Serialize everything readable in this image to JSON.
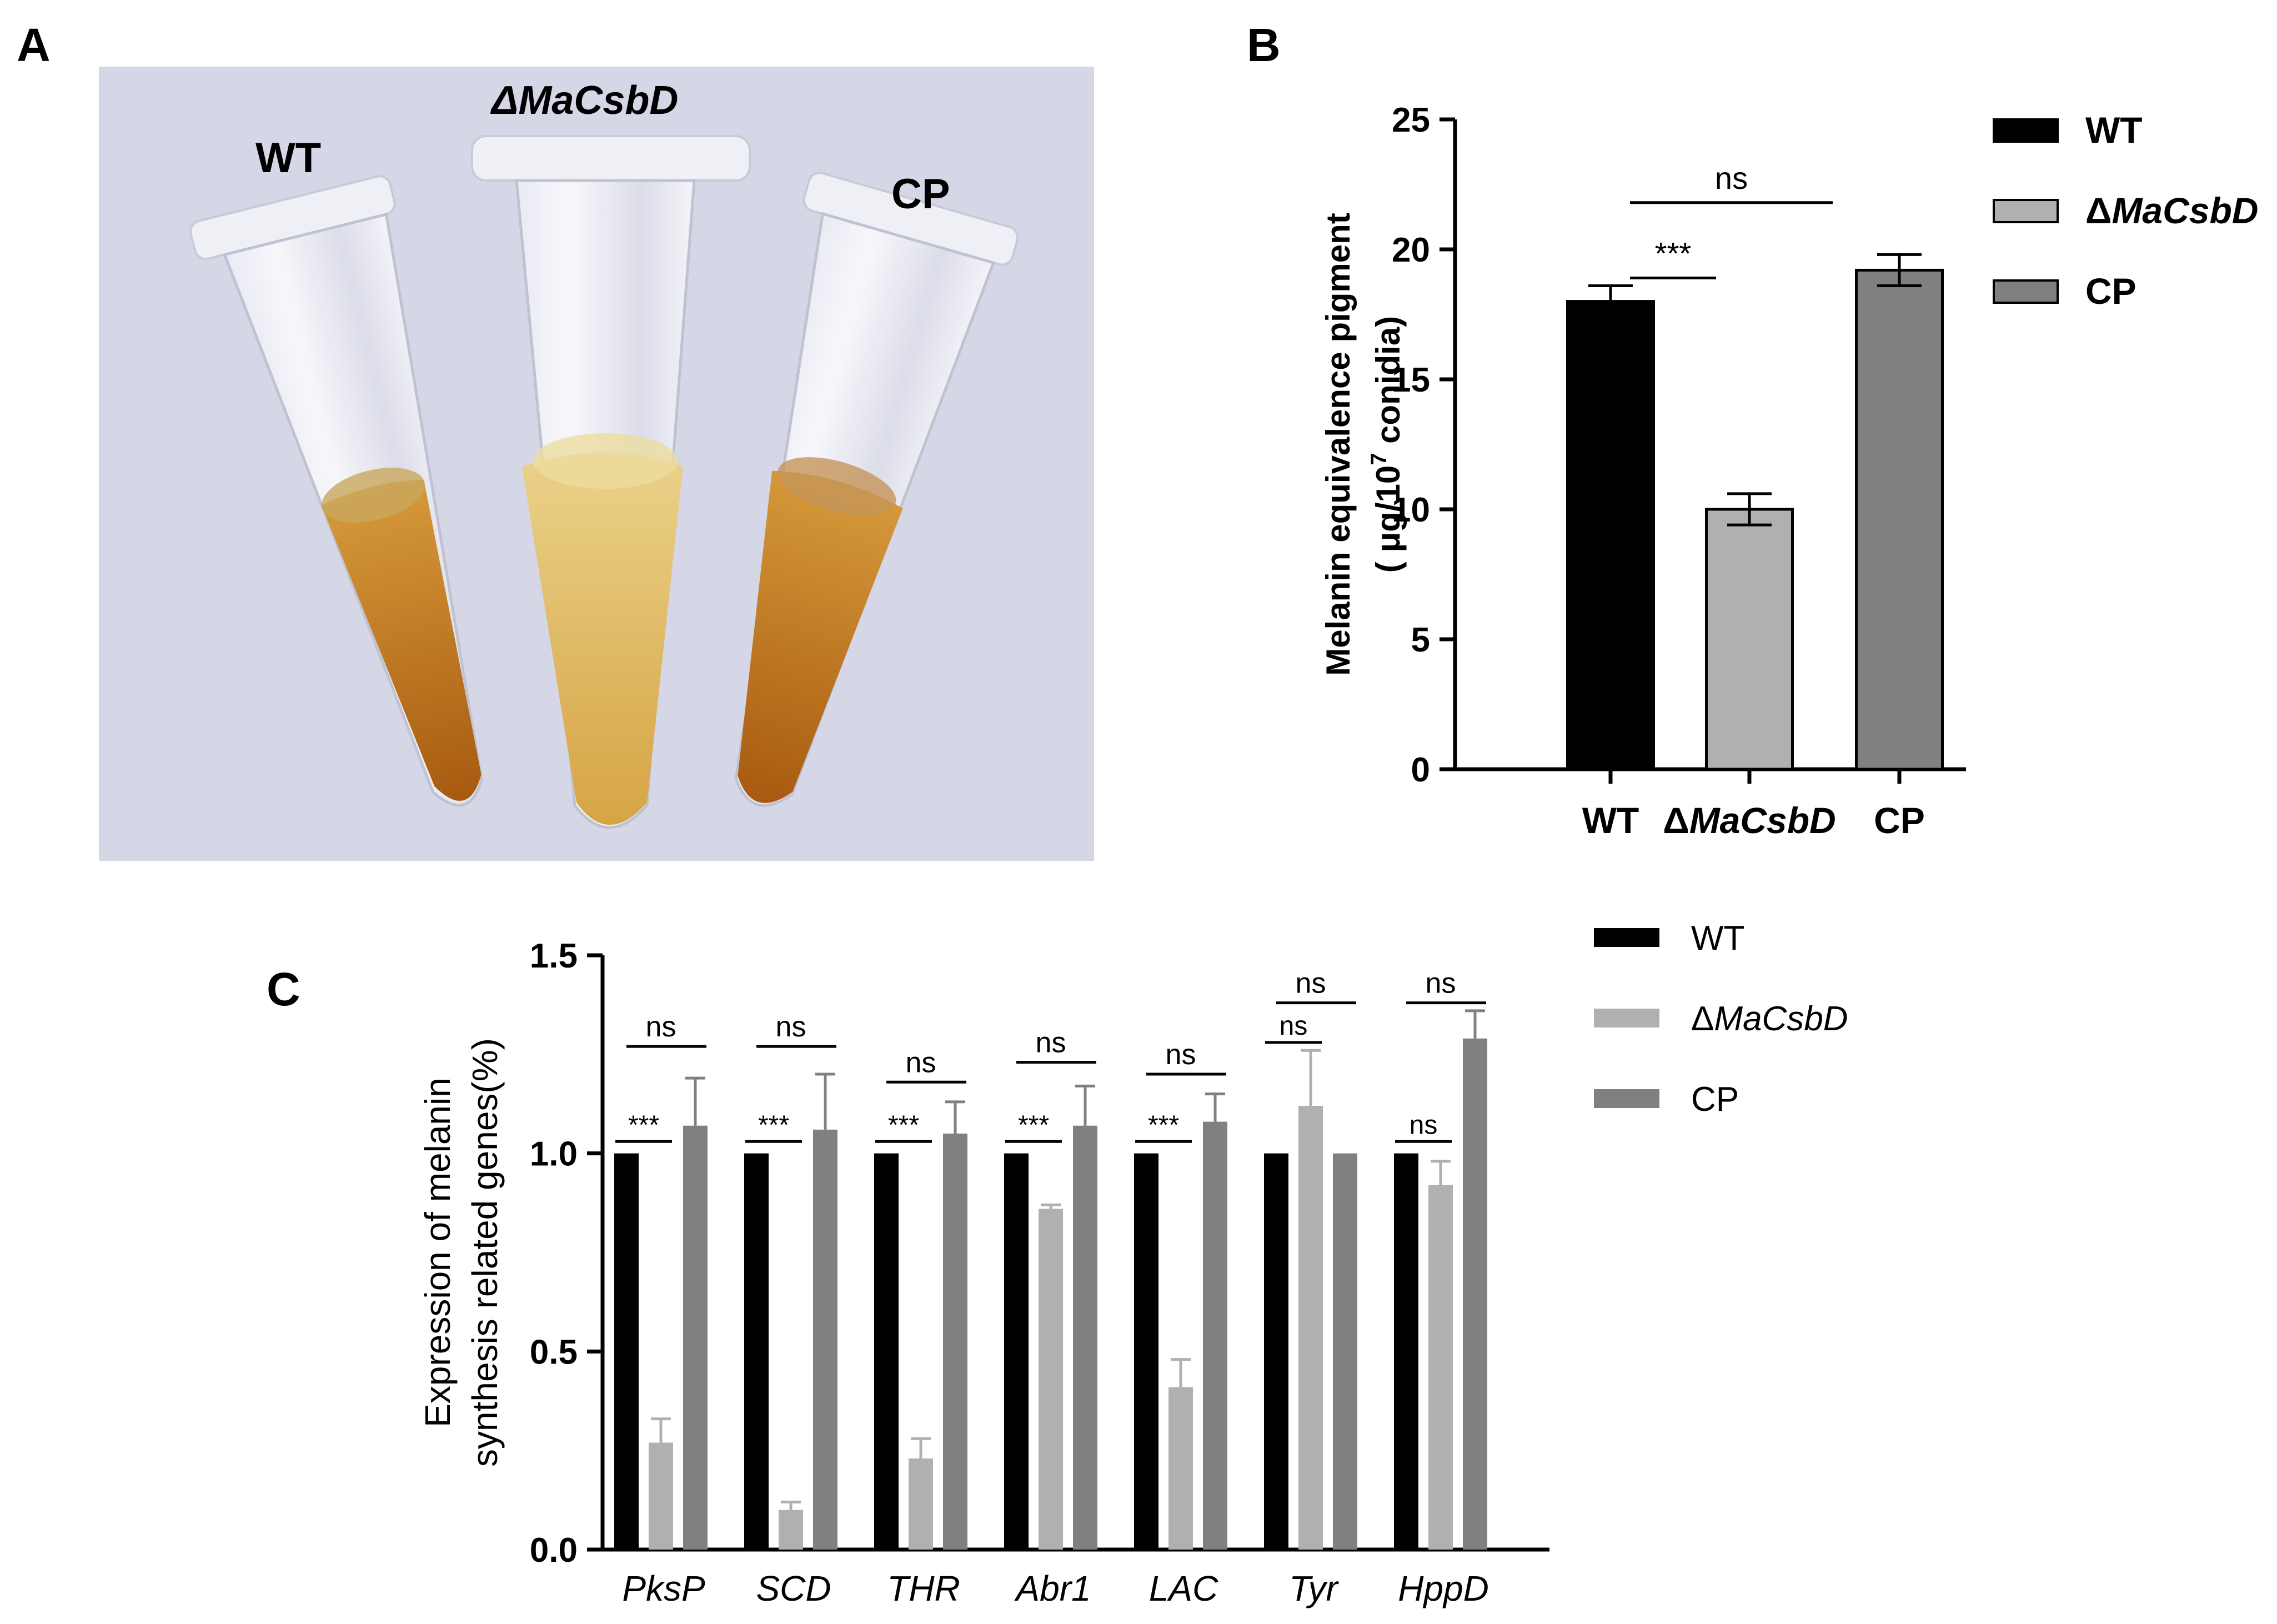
{
  "panels": {
    "A": {
      "letter": "A",
      "labels": {
        "wt": "WT",
        "delta": "ΔMaCsbD",
        "cp": "CP"
      }
    },
    "B": {
      "letter": "B"
    },
    "C": {
      "letter": "C"
    }
  },
  "colors": {
    "wt": "#000000",
    "delta": "#b0b0b0",
    "cp": "#808080",
    "background_photo": "#d6d7e6",
    "liquid_dark": "#b5620f",
    "liquid_light": "#d9a23a"
  },
  "chart_data": [
    {
      "panel": "B",
      "type": "bar",
      "title": "",
      "ylabel_line1": "Melanin equivalence pigment",
      "ylabel_line2": "( μg/10^7 conidia)",
      "ylim": [
        0,
        25
      ],
      "yticks": [
        0,
        5,
        10,
        15,
        20,
        25
      ],
      "grid": false,
      "legend_placement": "right",
      "categories": [
        "WT",
        "ΔMaCsbD",
        "CP"
      ],
      "values": [
        18.0,
        10.0,
        19.2
      ],
      "errors": [
        0.6,
        0.6,
        0.6
      ],
      "legend": [
        "WT",
        "ΔMaCsbD",
        "CP"
      ],
      "significance": [
        {
          "from": 0,
          "to": 1,
          "label": "***"
        },
        {
          "from": 1,
          "to": 2,
          "label": "ns"
        }
      ]
    },
    {
      "panel": "C",
      "type": "bar",
      "title": "",
      "ylabel_line1": "Expression of melanin",
      "ylabel_line2": "synthesis related genes(%)",
      "ylim": [
        0,
        1.5
      ],
      "yticks": [
        "0.0",
        "0.5",
        "1.0",
        "1.5"
      ],
      "grid": false,
      "legend_placement": "top-right",
      "categories": [
        "PksP",
        "SCD",
        "THR",
        "Abr1",
        "LAC",
        "Tyr",
        "HppD"
      ],
      "series": [
        {
          "name": "WT",
          "values": [
            1.0,
            1.0,
            1.0,
            1.0,
            1.0,
            1.0,
            1.0
          ],
          "errors": [
            0,
            0,
            0,
            0,
            0,
            0,
            0
          ]
        },
        {
          "name": "ΔMaCsbD",
          "values": [
            0.27,
            0.1,
            0.23,
            0.86,
            0.41,
            1.12,
            0.92
          ],
          "errors": [
            0.06,
            0.02,
            0.05,
            0.01,
            0.07,
            0.14,
            0.06
          ]
        },
        {
          "name": "CP",
          "values": [
            1.07,
            1.06,
            1.05,
            1.07,
            1.08,
            1.0,
            1.29
          ],
          "errors": [
            0.12,
            0.14,
            0.08,
            0.1,
            0.07,
            0,
            0.07
          ]
        }
      ],
      "significance": [
        {
          "category": 0,
          "lower": "***",
          "upper": "ns"
        },
        {
          "category": 1,
          "lower": "***",
          "upper": "ns"
        },
        {
          "category": 2,
          "lower": "***",
          "upper": "ns"
        },
        {
          "category": 3,
          "lower": "***",
          "upper": "ns"
        },
        {
          "category": 4,
          "lower": "***",
          "upper": "ns"
        },
        {
          "category": 5,
          "lower": "ns",
          "upper": "ns"
        },
        {
          "category": 6,
          "lower": "ns",
          "upper": "ns"
        }
      ]
    }
  ]
}
